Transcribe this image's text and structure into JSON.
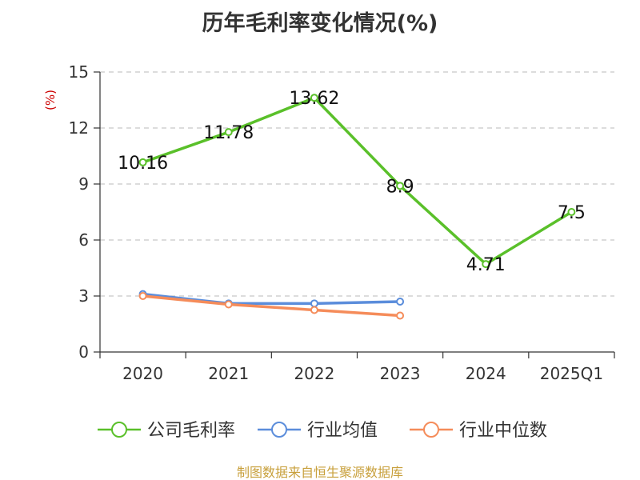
{
  "chart_data": {
    "type": "line",
    "title": "历年毛利率变化情况(%)",
    "ylabel": "(%)",
    "xlabel": "",
    "categories": [
      "2020",
      "2021",
      "2022",
      "2023",
      "2024",
      "2025Q1"
    ],
    "ylim": [
      0,
      15
    ],
    "yticks": [
      "0",
      "3",
      "6",
      "9",
      "12",
      "15"
    ],
    "grid": true,
    "legend_position": "bottom",
    "series": [
      {
        "name": "公司毛利率",
        "color": "#5ac02a",
        "values": [
          10.16,
          11.78,
          13.62,
          8.9,
          4.71,
          7.5
        ],
        "labels": [
          "10.16",
          "11.78",
          "13.62",
          "8.9",
          "4.71",
          "7.5"
        ]
      },
      {
        "name": "行业均值",
        "color": "#5b8ddb",
        "values": [
          3.1,
          2.6,
          2.6,
          2.7,
          null,
          null
        ]
      },
      {
        "name": "行业中位数",
        "color": "#f58c5a",
        "values": [
          3.0,
          2.55,
          2.25,
          1.95,
          null,
          null
        ]
      }
    ],
    "source": "制图数据来自恒生聚源数据库"
  }
}
